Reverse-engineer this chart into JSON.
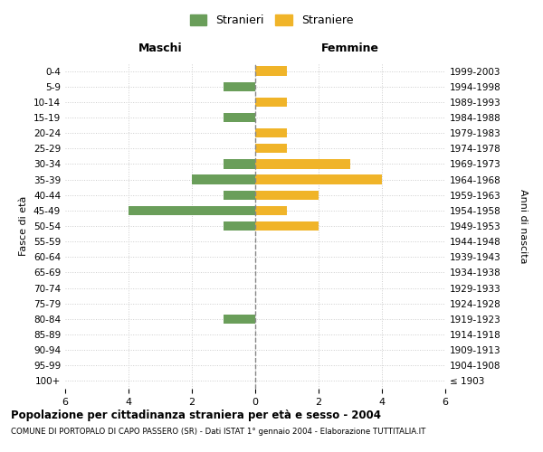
{
  "age_groups": [
    "100+",
    "95-99",
    "90-94",
    "85-89",
    "80-84",
    "75-79",
    "70-74",
    "65-69",
    "60-64",
    "55-59",
    "50-54",
    "45-49",
    "40-44",
    "35-39",
    "30-34",
    "25-29",
    "20-24",
    "15-19",
    "10-14",
    "5-9",
    "0-4"
  ],
  "birth_years": [
    "≤ 1903",
    "1904-1908",
    "1909-1913",
    "1914-1918",
    "1919-1923",
    "1924-1928",
    "1929-1933",
    "1934-1938",
    "1939-1943",
    "1944-1948",
    "1949-1953",
    "1954-1958",
    "1959-1963",
    "1964-1968",
    "1969-1973",
    "1974-1978",
    "1979-1983",
    "1984-1988",
    "1989-1993",
    "1994-1998",
    "1999-2003"
  ],
  "maschi": [
    0,
    0,
    0,
    0,
    1,
    0,
    0,
    0,
    0,
    0,
    1,
    4,
    1,
    2,
    1,
    0,
    0,
    1,
    0,
    1,
    0
  ],
  "femmine": [
    0,
    0,
    0,
    0,
    0,
    0,
    0,
    0,
    0,
    0,
    2,
    1,
    2,
    4,
    3,
    1,
    1,
    0,
    1,
    0,
    1
  ],
  "color_maschi": "#6a9e5a",
  "color_femmine": "#f0b429",
  "xlim": 6,
  "title": "Popolazione per cittadinanza straniera per età e sesso - 2004",
  "subtitle": "COMUNE DI PORTOPALO DI CAPO PASSERO (SR) - Dati ISTAT 1° gennaio 2004 - Elaborazione TUTTITALIA.IT",
  "ylabel_left": "Fasce di età",
  "ylabel_right": "Anni di nascita",
  "xlabel_maschi": "Maschi",
  "xlabel_femmine": "Femmine",
  "legend_maschi": "Stranieri",
  "legend_femmine": "Straniere",
  "bg_color": "#ffffff",
  "grid_color": "#cccccc"
}
